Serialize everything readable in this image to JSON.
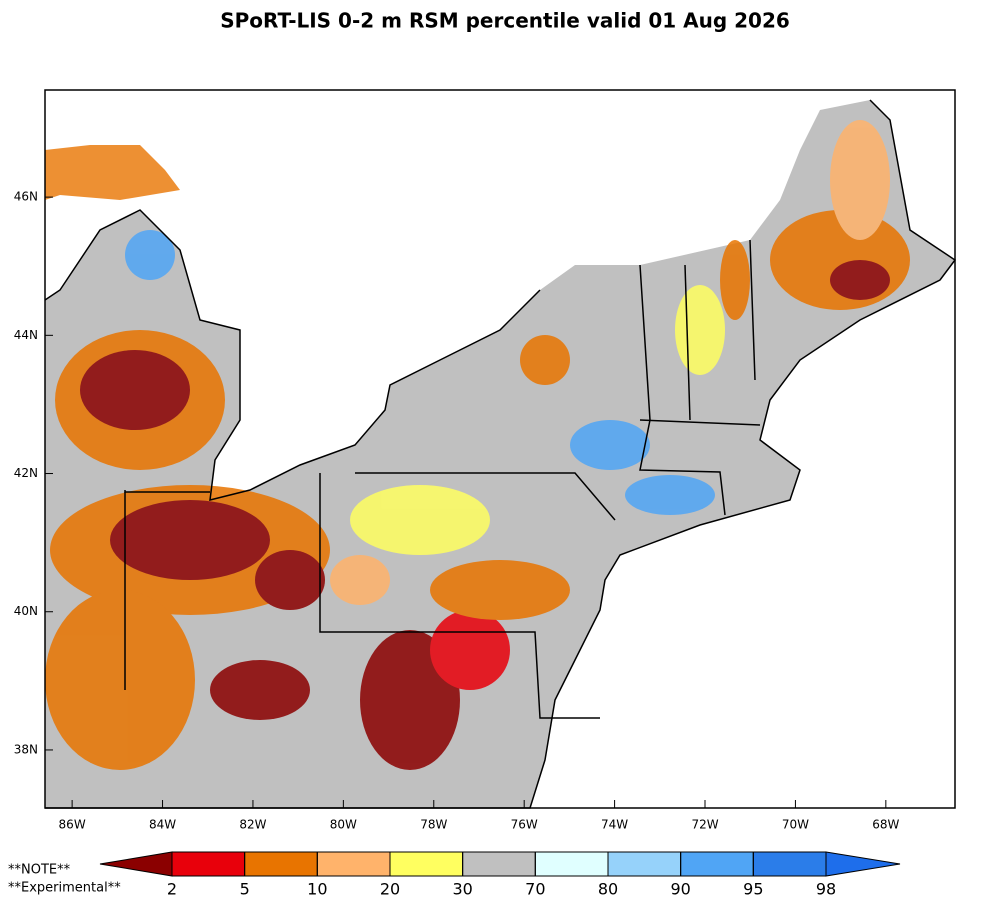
{
  "title": "SPoRT-LIS 0-2 m RSM percentile valid 01 Aug 2026",
  "map": {
    "lon_range": [
      -86.6,
      -66.47
    ],
    "lat_range": [
      37.16,
      47.55
    ],
    "lon_ticks": [
      {
        "value": -86,
        "label": "86W"
      },
      {
        "value": -84,
        "label": "84W"
      },
      {
        "value": -82,
        "label": "82W"
      },
      {
        "value": -80,
        "label": "80W"
      },
      {
        "value": -78,
        "label": "78W"
      },
      {
        "value": -76,
        "label": "76W"
      },
      {
        "value": -74,
        "label": "74W"
      },
      {
        "value": -72,
        "label": "72W"
      },
      {
        "value": -70,
        "label": "70W"
      },
      {
        "value": -68,
        "label": "68W"
      }
    ],
    "lat_ticks": [
      {
        "value": 38,
        "label": "38N"
      },
      {
        "value": 40,
        "label": "40N"
      },
      {
        "value": 42,
        "label": "42N"
      },
      {
        "value": 44,
        "label": "44N"
      },
      {
        "value": 46,
        "label": "46N"
      }
    ]
  },
  "colorbar": {
    "levels": [
      2,
      5,
      10,
      20,
      30,
      70,
      80,
      90,
      95,
      98
    ],
    "colors": [
      "#8b0000",
      "#e8000b",
      "#e87400",
      "#ffb36b",
      "#ffff60",
      "#c0c0c0",
      "#e0ffff",
      "#96d2fa",
      "#50a5f5",
      "#2b7de9",
      "#1e6eeb"
    ]
  },
  "notes": [
    "**NOTE**",
    "**Experimental**"
  ]
}
